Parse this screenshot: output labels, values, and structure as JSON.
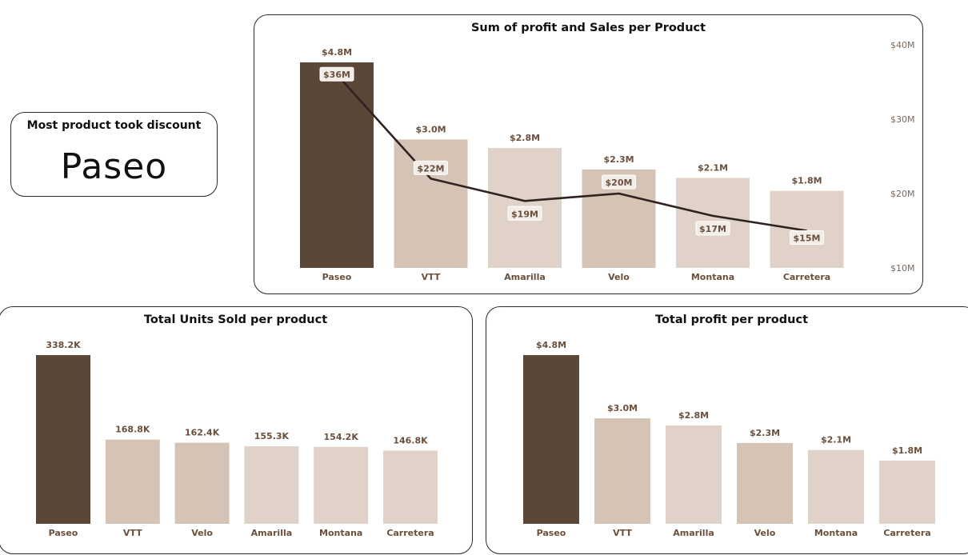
{
  "colors": {
    "dark": "#5a4738",
    "medium": "#d5c4b6",
    "light": "#e0d2c8",
    "line": "#2e2320",
    "label": "#6b4f3d",
    "axis": "#7a6a60"
  },
  "kpi": {
    "title": "Most product took discount",
    "value": "Paseo"
  },
  "chart_data": [
    {
      "type": "bar+line",
      "title": "Sum of profit and Sales per Product",
      "categories": [
        "Paseo",
        "VTT",
        "Amarilla",
        "Velo",
        "Montana",
        "Carretera"
      ],
      "bar_series": {
        "values": [
          4.8,
          3.0,
          2.8,
          2.3,
          2.1,
          1.8
        ],
        "labels": [
          "$4.8M",
          "$3.0M",
          "$2.8M",
          "$2.3M",
          "$2.1M",
          "$1.8M"
        ]
      },
      "line_series": {
        "values": [
          36,
          22,
          19,
          20,
          17,
          15
        ],
        "labels": [
          "$36M",
          "$22M",
          "$19M",
          "$20M",
          "$17M",
          "$15M"
        ]
      },
      "bar_colors": [
        "dark",
        "medium",
        "light",
        "medium",
        "light",
        "light"
      ],
      "bar_ylim": [
        0,
        4.8
      ],
      "line_ylim": [
        10,
        40
      ],
      "right_axis_ticks": [
        {
          "value": 40,
          "label": "$40M"
        },
        {
          "value": 30,
          "label": "$30M"
        },
        {
          "value": 20,
          "label": "$20M"
        },
        {
          "value": 10,
          "label": "$10M"
        }
      ]
    },
    {
      "type": "bar",
      "title": "Total Units Sold per product",
      "categories": [
        "Paseo",
        "VTT",
        "Velo",
        "Amarilla",
        "Montana",
        "Carretera"
      ],
      "values": [
        338.2,
        168.8,
        162.4,
        155.3,
        154.2,
        146.8
      ],
      "labels": [
        "338.2K",
        "168.8K",
        "162.4K",
        "155.3K",
        "154.2K",
        "146.8K"
      ],
      "bar_colors": [
        "dark",
        "medium",
        "medium",
        "light",
        "light",
        "light"
      ],
      "ylim": [
        0,
        338.2
      ]
    },
    {
      "type": "bar",
      "title": "Total profit per product",
      "categories": [
        "Paseo",
        "VTT",
        "Amarilla",
        "Velo",
        "Montana",
        "Carretera"
      ],
      "values": [
        4.8,
        3.0,
        2.8,
        2.3,
        2.1,
        1.8
      ],
      "labels": [
        "$4.8M",
        "$3.0M",
        "$2.8M",
        "$2.3M",
        "$2.1M",
        "$1.8M"
      ],
      "bar_colors": [
        "dark",
        "medium",
        "light",
        "medium",
        "light",
        "light"
      ],
      "ylim": [
        0,
        4.8
      ]
    }
  ]
}
